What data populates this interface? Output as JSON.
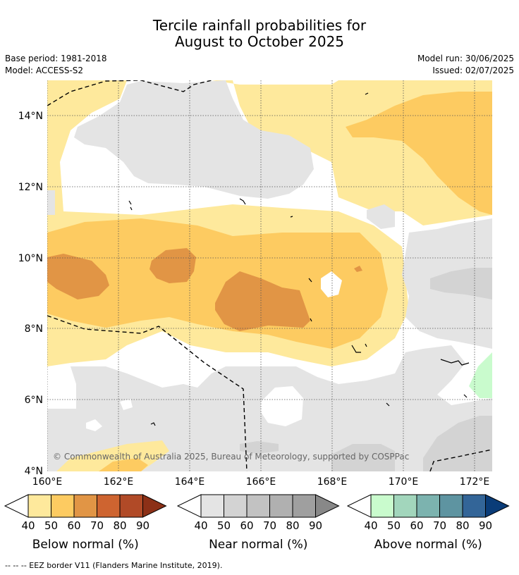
{
  "title_line1": "Tercile rainfall probabilities for",
  "title_line2": "August to October 2025",
  "base_period": "Base period: 1981-2018",
  "model": "Model: ACCESS-S2",
  "model_run": "Model run: 30/06/2025",
  "issued": "Issued: 02/07/2025",
  "copyright": "© Commonwealth of Australia 2025, Bureau of Meteorology, supported by COSPPac",
  "footnote": "-- -- -- EEZ border V11 (Flanders Marine Institute, 2019).",
  "map": {
    "lat_labels": [
      "14°N",
      "12°N",
      "10°N",
      "8°N",
      "6°N",
      "4°N"
    ],
    "lon_labels": [
      "160°E",
      "162°E",
      "164°E",
      "166°E",
      "168°E",
      "170°E",
      "172°E"
    ],
    "extent": {
      "lon": [
        160,
        172.5
      ],
      "lat": [
        4,
        15
      ]
    }
  },
  "colors": {
    "below": [
      "#fee99c",
      "#fdcb61",
      "#e19545",
      "#ce6430",
      "#b14a27",
      "#8c3017"
    ],
    "near": [
      "#e4e4e4",
      "#d3d3d3",
      "#c2c2c2",
      "#b0b0b0",
      "#9f9f9f",
      "#888888"
    ],
    "above": [
      "#c9fbcd",
      "#a2d6bc",
      "#7cb3af",
      "#5e94a1",
      "#336598",
      "#0a3c78"
    ]
  },
  "legends": [
    {
      "title": "Below normal (%)",
      "ticks": [
        "40",
        "50",
        "60",
        "70",
        "80",
        "90"
      ]
    },
    {
      "title": "Near normal (%)",
      "ticks": [
        "40",
        "50",
        "60",
        "70",
        "80",
        "90"
      ]
    },
    {
      "title": "Above normal (%)",
      "ticks": [
        "40",
        "50",
        "60",
        "70",
        "80",
        "90"
      ]
    }
  ]
}
